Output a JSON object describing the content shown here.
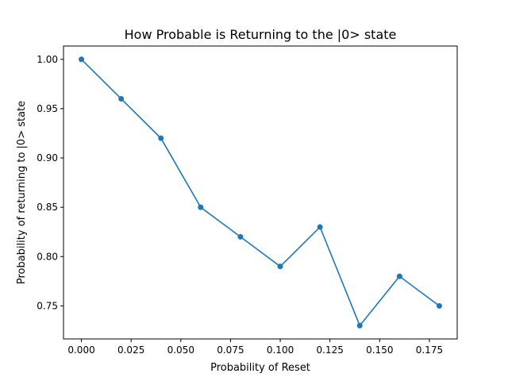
{
  "chart_data": {
    "type": "line",
    "title": "How Probable is Returning to the |0> state",
    "xlabel": "Probability of Reset",
    "ylabel": "Probability of returning to |0> state",
    "x": [
      0.0,
      0.02,
      0.04,
      0.06,
      0.08,
      0.1,
      0.12,
      0.14,
      0.16,
      0.18
    ],
    "series": [
      {
        "values": [
          1.0,
          0.96,
          0.92,
          0.85,
          0.82,
          0.79,
          0.83,
          0.73,
          0.78,
          0.75
        ]
      }
    ],
    "xlim": [
      -0.009,
      0.189
    ],
    "ylim": [
      0.7165,
      1.0135
    ],
    "xticks": [
      0.0,
      0.025,
      0.05,
      0.075,
      0.1,
      0.125,
      0.15,
      0.175
    ],
    "xtick_labels": [
      "0.000",
      "0.025",
      "0.050",
      "0.075",
      "0.100",
      "0.125",
      "0.150",
      "0.175"
    ],
    "yticks": [
      0.75,
      0.8,
      0.85,
      0.9,
      0.95,
      1.0
    ],
    "ytick_labels": [
      "0.75",
      "0.80",
      "0.85",
      "0.90",
      "0.95",
      "1.00"
    ],
    "grid": false,
    "line_color": "#1f77b4"
  }
}
